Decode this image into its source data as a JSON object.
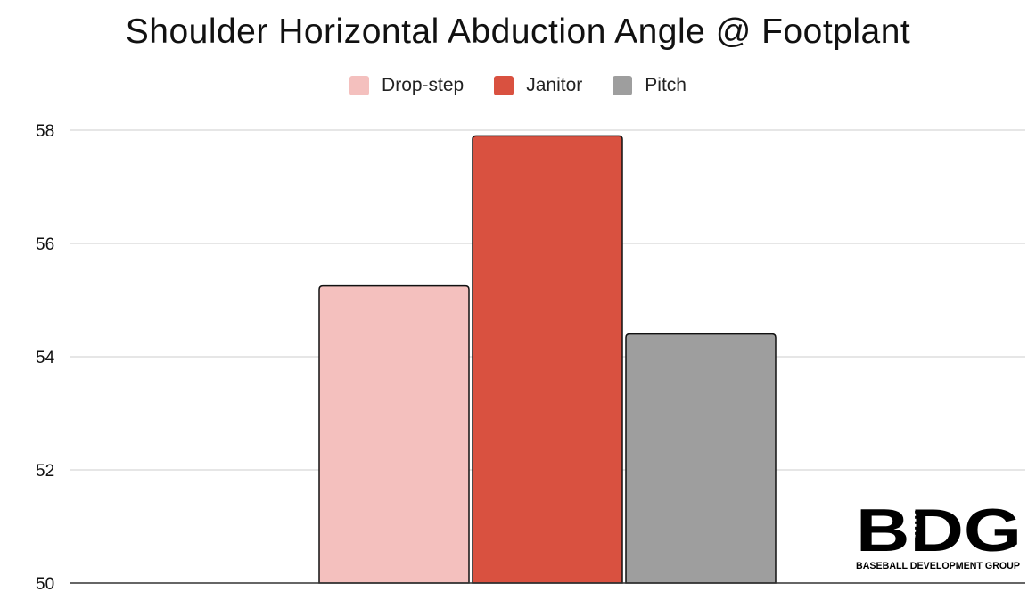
{
  "chart_data": {
    "type": "bar",
    "title": "Shoulder Horizontal Abduction Angle @ Footplant",
    "xlabel": "",
    "ylabel": "",
    "ylim": [
      50,
      58
    ],
    "yticks": [
      50,
      52,
      54,
      56,
      58
    ],
    "grid": true,
    "legend_position": "top",
    "series": [
      {
        "name": "Drop-step",
        "values": [
          55.25
        ],
        "color": "#f4c0be"
      },
      {
        "name": "Janitor",
        "values": [
          57.9
        ],
        "color": "#d95140"
      },
      {
        "name": "Pitch",
        "values": [
          54.4
        ],
        "color": "#9e9e9e"
      }
    ]
  },
  "logo": {
    "mark": "BDG",
    "subtitle": "BASEBALL DEVELOPMENT GROUP"
  }
}
